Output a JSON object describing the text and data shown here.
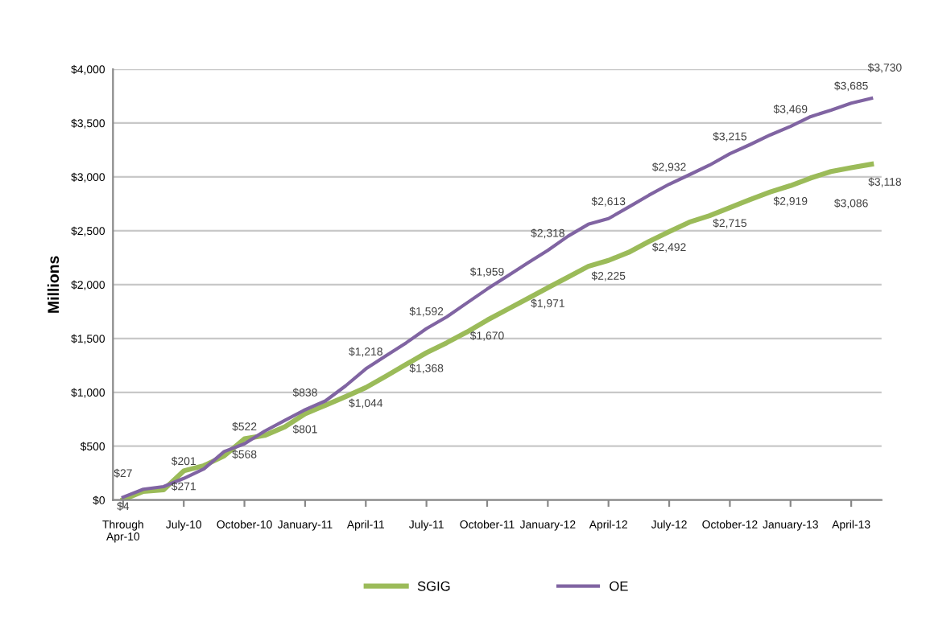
{
  "chart_data": {
    "type": "line",
    "ylabel": "Millions",
    "categories": [
      "Through\nApr-10",
      null,
      null,
      "July-10",
      null,
      null,
      "October-10",
      null,
      null,
      "January-11",
      null,
      null,
      "April-11",
      null,
      null,
      "July-11",
      null,
      null,
      "October-11",
      null,
      null,
      "January-12",
      null,
      null,
      "April-12",
      null,
      null,
      "July-12",
      null,
      null,
      "October-12",
      null,
      null,
      "January-13",
      null,
      null,
      "April-13",
      null
    ],
    "series": [
      {
        "name": "SGIG",
        "color": "#9bbb59",
        "values": [
          4,
          80,
          95,
          271,
          320,
          410,
          568,
          600,
          680,
          801,
          880,
          960,
          1044,
          1150,
          1260,
          1368,
          1460,
          1560,
          1670,
          1770,
          1870,
          1971,
          2070,
          2170,
          2225,
          2300,
          2400,
          2492,
          2580,
          2640,
          2715,
          2790,
          2860,
          2919,
          2990,
          3050,
          3086,
          3118
        ],
        "value_labels": [
          "$4",
          null,
          null,
          "$271",
          null,
          null,
          "$568",
          null,
          null,
          "$801",
          null,
          null,
          "$1,044",
          null,
          null,
          "$1,368",
          null,
          null,
          "$1,670",
          null,
          null,
          "$1,971",
          null,
          null,
          "$2,225",
          null,
          null,
          "$2,492",
          null,
          null,
          "$2,715",
          null,
          null,
          "$2,919",
          null,
          null,
          "$3,086",
          "$3,118"
        ]
      },
      {
        "name": "OE",
        "color": "#8064a2",
        "values": [
          27,
          100,
          125,
          201,
          290,
          450,
          522,
          640,
          740,
          838,
          920,
          1060,
          1218,
          1340,
          1460,
          1592,
          1700,
          1830,
          1959,
          2080,
          2200,
          2318,
          2450,
          2560,
          2613,
          2720,
          2830,
          2932,
          3020,
          3110,
          3215,
          3300,
          3390,
          3469,
          3560,
          3620,
          3685,
          3730
        ],
        "value_labels": [
          "$27",
          null,
          null,
          "$201",
          null,
          null,
          "$522",
          null,
          null,
          "$838",
          null,
          null,
          "$1,218",
          null,
          null,
          "$1,592",
          null,
          null,
          "$1,959",
          null,
          null,
          "$2,318",
          null,
          null,
          "$2,613",
          null,
          null,
          "$2,932",
          null,
          null,
          "$3,215",
          null,
          null,
          "$3,469",
          null,
          null,
          "$3,685",
          "$3,730"
        ]
      }
    ],
    "ylim": [
      0,
      4000
    ],
    "yticks": [
      {
        "value": 0,
        "label": "$0"
      },
      {
        "value": 500,
        "label": "$500"
      },
      {
        "value": 1000,
        "label": "$1,000"
      },
      {
        "value": 1500,
        "label": "$1,500"
      },
      {
        "value": 2000,
        "label": "$2,000"
      },
      {
        "value": 2500,
        "label": "$2,500"
      },
      {
        "value": 3000,
        "label": "$3,000"
      },
      {
        "value": 3500,
        "label": "$3,500"
      },
      {
        "value": 4000,
        "label": "$4,000"
      }
    ],
    "grid": "y",
    "legend": "bottom",
    "marker": "none",
    "line_style": "solid"
  }
}
